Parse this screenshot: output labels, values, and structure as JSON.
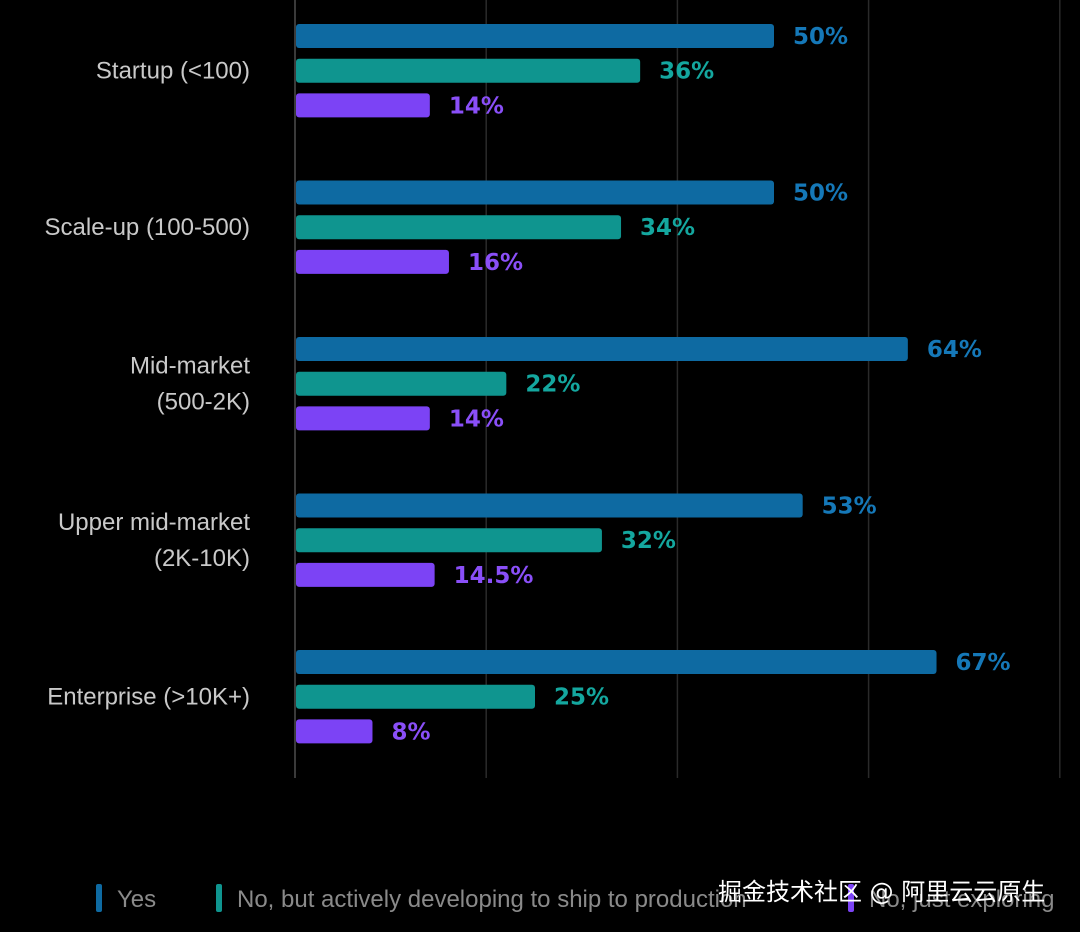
{
  "chart_data": {
    "type": "bar",
    "orientation": "horizontal",
    "categories": [
      [
        "Startup (<100)"
      ],
      [
        "Scale-up (100-500)"
      ],
      [
        "Mid-market",
        "(500-2K)"
      ],
      [
        "Upper mid-market",
        "(2K-10K)"
      ],
      [
        "Enterprise (>10K+)"
      ]
    ],
    "series": [
      {
        "name": "Yes",
        "color": "#0e6aa2",
        "values": [
          50,
          50,
          64,
          53,
          67
        ],
        "labels": [
          "50%",
          "50%",
          "64%",
          "53%",
          "67%"
        ]
      },
      {
        "name": "No, but actively developing to ship to production",
        "color": "#0f958f",
        "values": [
          36,
          34,
          22,
          32,
          25
        ],
        "labels": [
          "36%",
          "34%",
          "22%",
          "32%",
          "25%"
        ]
      },
      {
        "name": "No, just exploring",
        "color": "#7c43f5",
        "values": [
          14,
          16,
          14,
          14.5,
          8
        ],
        "labels": [
          "14%",
          "16%",
          "14%",
          "14.5%",
          "8%"
        ]
      }
    ],
    "xlim": [
      0,
      80
    ],
    "grid": true,
    "legend_position": "bottom",
    "label_colors": [
      "#1578b8",
      "#14a79f",
      "#8a4ff8"
    ]
  },
  "watermark": "掘金技术社区 @ 阿里云云原生",
  "colors": {
    "background": "#000000",
    "grid": "#2a2a2a",
    "axis": "#3a3a3a"
  }
}
